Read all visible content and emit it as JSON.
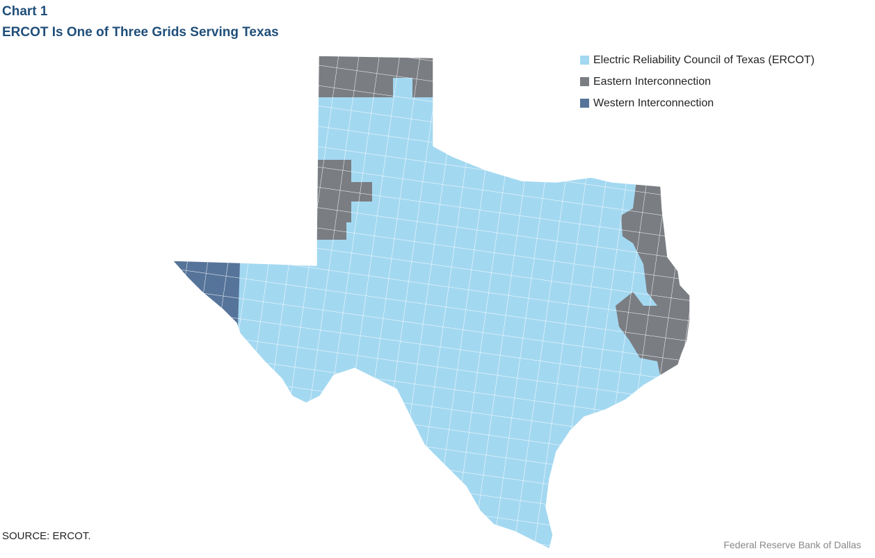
{
  "header": {
    "kicker": "Chart 1",
    "title": "ERCOT Is One of Three Grids Serving Texas"
  },
  "legend": {
    "items": [
      {
        "label": "Electric Reliability Council of Texas (ERCOT)",
        "color": "#a3d8f1"
      },
      {
        "label": "Eastern Interconnection",
        "color": "#7a7d82"
      },
      {
        "label": "Western Interconnection",
        "color": "#56749a"
      }
    ]
  },
  "footer": {
    "source": "SOURCE: ERCOT.",
    "credit": "Federal Reserve Bank of Dallas"
  }
}
